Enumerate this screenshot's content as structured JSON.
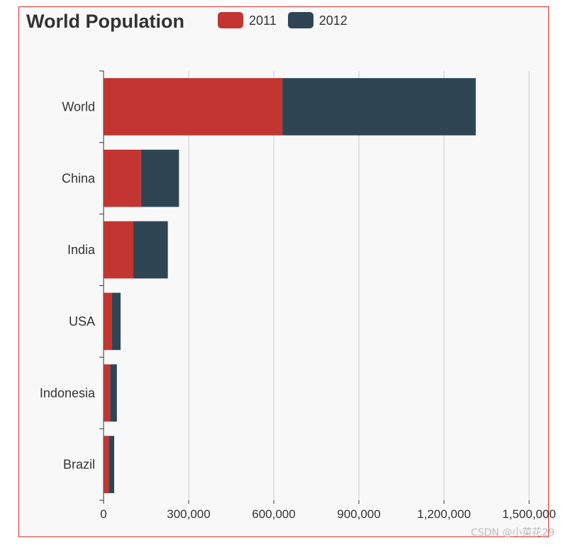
{
  "chart_data": {
    "type": "bar",
    "orientation": "horizontal",
    "stacked": true,
    "title": "World Population",
    "categories": [
      "World",
      "China",
      "India",
      "USA",
      "Indonesia",
      "Brazil"
    ],
    "series": [
      {
        "name": "2011",
        "color": "#c23531",
        "values": [
          630230,
          131744,
          104970,
          29034,
          23489,
          18203
        ]
      },
      {
        "name": "2012",
        "color": "#2f4554",
        "values": [
          681807,
          134141,
          121594,
          31000,
          23438,
          19325
        ]
      }
    ],
    "xlim": [
      0,
      1500000
    ],
    "xticks": [
      "0",
      "300,000",
      "600,000",
      "900,000",
      "1,200,000",
      "1,500,000"
    ],
    "xtick_values": [
      0,
      300000,
      600000,
      900000,
      1200000,
      1500000
    ],
    "grid": true,
    "legend_position": "top"
  },
  "watermark": "CSDN @小菜花29"
}
